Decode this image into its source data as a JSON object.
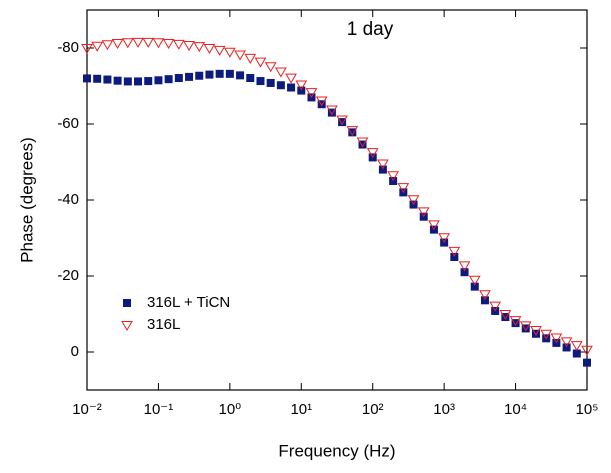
{
  "chart_data": {
    "type": "scatter",
    "annotation": "1 day",
    "x_label": "Frequency (Hz)",
    "y_label": "Phase (degrees)",
    "xscale": "log",
    "xlim": [
      0.01,
      100000
    ],
    "xticks": [
      {
        "value": 0.01,
        "label": "10⁻²"
      },
      {
        "value": 0.1,
        "label": "10⁻¹"
      },
      {
        "value": 1,
        "label": "10⁰"
      },
      {
        "value": 10,
        "label": "10¹"
      },
      {
        "value": 100,
        "label": "10²"
      },
      {
        "value": 1000,
        "label": "10³"
      },
      {
        "value": 10000,
        "label": "10⁴"
      },
      {
        "value": 100000,
        "label": "10⁵"
      }
    ],
    "ylim": [
      10,
      -90
    ],
    "yticks": [
      0,
      -20,
      -40,
      -60,
      -80
    ],
    "legend": "lower-left",
    "x": [
      0.01,
      0.01389,
      0.01931,
      0.02683,
      0.03728,
      0.05179,
      0.07197,
      0.1,
      0.1389,
      0.1931,
      0.2683,
      0.3728,
      0.5179,
      0.7197,
      1,
      1.389,
      1.931,
      2.683,
      3.728,
      5.179,
      7.197,
      10,
      13.89,
      19.31,
      26.83,
      37.28,
      51.79,
      71.97,
      100,
      138.9,
      193.1,
      268.3,
      372.8,
      517.9,
      719.7,
      1000,
      1389,
      1931,
      2683,
      3728,
      5179,
      7197,
      10000,
      13890,
      19310,
      26830,
      37280,
      51790,
      71970,
      100000
    ],
    "series": [
      {
        "name": "316L + TiCN",
        "color": "#0d1a7e",
        "marker": "square",
        "values": [
          -72.0,
          -71.9,
          -71.7,
          -71.4,
          -71.2,
          -71.2,
          -71.3,
          -71.5,
          -71.8,
          -72.1,
          -72.4,
          -72.7,
          -73.0,
          -73.2,
          -73.2,
          -72.8,
          -72.1,
          -71.3,
          -70.8,
          -70.2,
          -69.6,
          -68.8,
          -67.0,
          -65.2,
          -63.0,
          -60.5,
          -57.8,
          -54.6,
          -51.2,
          -48.0,
          -45.0,
          -42.0,
          -38.8,
          -35.6,
          -32.2,
          -28.8,
          -25.0,
          -21.0,
          -17.2,
          -13.6,
          -10.8,
          -9.2,
          -7.6,
          -6.2,
          -4.8,
          -3.6,
          -2.4,
          -1.2,
          0.4,
          2.8
        ]
      },
      {
        "name": "316L",
        "color": "#e8201e",
        "marker": "triangle-down",
        "values": [
          -80.0,
          -80.6,
          -81.0,
          -81.3,
          -81.5,
          -81.6,
          -81.6,
          -81.5,
          -81.3,
          -81.1,
          -80.8,
          -80.5,
          -80.0,
          -79.5,
          -79.0,
          -78.3,
          -77.4,
          -76.4,
          -75.2,
          -73.8,
          -72.2,
          -70.4,
          -68.4,
          -66.2,
          -63.8,
          -61.2,
          -58.4,
          -55.4,
          -52.6,
          -49.6,
          -46.5,
          -43.4,
          -40.2,
          -37.0,
          -33.6,
          -30.2,
          -26.6,
          -22.8,
          -19.0,
          -15.2,
          -12.2,
          -10.0,
          -8.4,
          -7.0,
          -5.8,
          -4.8,
          -3.8,
          -2.8,
          -1.8,
          -0.6
        ]
      }
    ]
  }
}
